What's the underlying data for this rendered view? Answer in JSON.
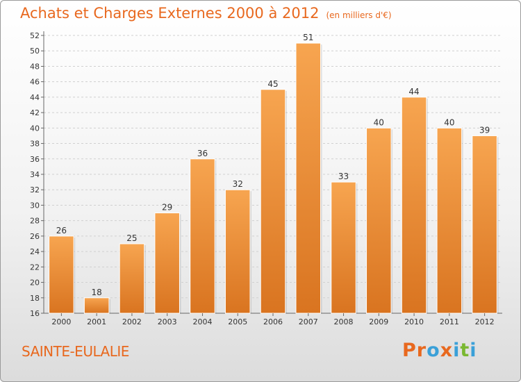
{
  "header": {
    "title": "Achats et Charges Externes 2000 à 2012",
    "unit": "(en milliers d'€)"
  },
  "footer": {
    "commune": "SAINTE-EULALIE",
    "logo": [
      "P",
      "r",
      "o",
      "x",
      "i",
      "t",
      "i"
    ]
  },
  "colors": {
    "accent": "#e8681e",
    "bar_light": "#f7a550",
    "bar_dark": "#d97420",
    "logo": [
      "#e8681e",
      "#e8681e",
      "#3aa0d8",
      "#e8681e",
      "#3aa0d8",
      "#7ab831",
      "#3aa0d8"
    ]
  },
  "chart_data": {
    "type": "bar",
    "title": "Achats et Charges Externes 2000 à 2012",
    "subtitle": "(en milliers d'€)",
    "categories": [
      "2000",
      "2001",
      "2002",
      "2003",
      "2004",
      "2005",
      "2006",
      "2007",
      "2008",
      "2009",
      "2010",
      "2011",
      "2012"
    ],
    "values": [
      26,
      18,
      25,
      29,
      36,
      32,
      45,
      51,
      33,
      40,
      44,
      40,
      39
    ],
    "ylim": [
      16,
      52
    ],
    "yticks": [
      16,
      18,
      20,
      22,
      24,
      26,
      28,
      30,
      32,
      34,
      36,
      38,
      40,
      42,
      44,
      46,
      48,
      50,
      52
    ],
    "grid": true,
    "xlabel": "",
    "ylabel": ""
  }
}
